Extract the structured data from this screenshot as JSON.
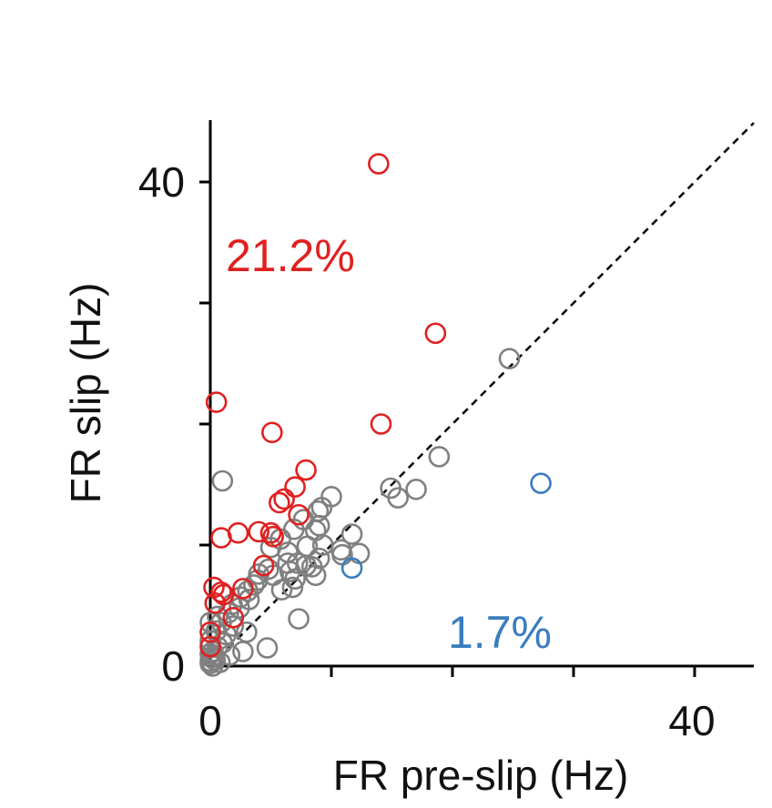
{
  "chart_data": {
    "type": "scatter",
    "xlabel": "FR pre-slip (Hz)",
    "ylabel": "FR slip (Hz)",
    "xlim": [
      0,
      45
    ],
    "ylim": [
      0,
      45
    ],
    "x_ticks": [
      0,
      10,
      20,
      30,
      40
    ],
    "y_ticks": [
      0,
      10,
      20,
      30,
      40
    ],
    "x_tick_labels": [
      "0",
      "",
      "",
      "",
      "40"
    ],
    "y_tick_labels": [
      "0",
      "",
      "",
      "",
      "40"
    ],
    "reference_line": "y = x (dashed)",
    "colors": {
      "increase": "#e02020",
      "decrease": "#3a7dc0",
      "unchanged": "#808080",
      "axis": "#000000"
    },
    "annotations": [
      {
        "id": "increase",
        "text": "21.2%",
        "color": "#e02020"
      },
      {
        "id": "decrease",
        "text": "1.7%",
        "color": "#3a7dc0"
      }
    ],
    "series": [
      {
        "id": "increase",
        "color": "#e02020",
        "x": [
          13.9,
          18.6,
          0.5,
          5.1,
          14.1,
          7.9,
          7.0,
          6.1,
          5.7,
          7.3,
          0.9,
          2.3,
          4.0,
          5.2,
          5.0,
          4.4,
          0.3,
          0.9,
          0.4,
          2.7,
          1.1,
          1.9,
          0.0,
          0.0
        ],
        "y": [
          41.5,
          27.5,
          21.8,
          19.3,
          20.0,
          16.2,
          14.8,
          13.8,
          13.5,
          12.5,
          10.6,
          11.0,
          11.1,
          10.7,
          11.0,
          8.3,
          6.5,
          6.1,
          5.2,
          6.4,
          5.9,
          4.0,
          2.8,
          1.6
        ]
      },
      {
        "id": "decrease",
        "color": "#3a7dc0",
        "x": [
          27.3,
          11.7
        ],
        "y": [
          15.1,
          8.1
        ]
      },
      {
        "id": "unchanged",
        "color": "#808080",
        "x": [
          24.7,
          18.9,
          1.0,
          17.0,
          14.9,
          15.5,
          10.0,
          9.2,
          11.7,
          9.0,
          8.7,
          9.3,
          10.8,
          10.9,
          12.3,
          8.0,
          9.0,
          8.4,
          8.7,
          7.2,
          6.6,
          7.0,
          6.8,
          7.3,
          5.8,
          5.0,
          4.8,
          4.0,
          3.6,
          3.1,
          2.5,
          1.8,
          1.5,
          0.9,
          0.5,
          0.2,
          0.0,
          6.9,
          7.7,
          8.9,
          6.4,
          6.4,
          7.9,
          5.2,
          5.9,
          3.9,
          3.2,
          2.4,
          1.9,
          1.3,
          1.0,
          0.6,
          0.3,
          0.1,
          0.0,
          0.0,
          0.0,
          4.7,
          2.7,
          1.6,
          0.8,
          0.4,
          0.2,
          0.0,
          3.0,
          0.6
        ],
        "y": [
          25.4,
          17.3,
          15.3,
          14.6,
          14.7,
          13.9,
          14.0,
          13.1,
          10.9,
          11.6,
          11.2,
          10.0,
          9.6,
          9.2,
          9.3,
          9.9,
          8.9,
          8.2,
          7.5,
          8.5,
          7.8,
          7.2,
          6.5,
          3.9,
          10.5,
          9.8,
          8.0,
          7.6,
          6.7,
          6.2,
          5.7,
          5.1,
          4.4,
          3.6,
          2.9,
          1.2,
          0.4,
          11.3,
          12.1,
          12.8,
          9.4,
          8.5,
          8.3,
          7.5,
          6.3,
          7.1,
          5.5,
          4.8,
          3.3,
          2.6,
          1.9,
          1.6,
          0.9,
          0.7,
          0.2,
          2.1,
          3.6,
          1.5,
          1.2,
          0.9,
          0.3,
          0.5,
          0.0,
          1.0,
          2.8,
          4.1
        ]
      }
    ]
  }
}
